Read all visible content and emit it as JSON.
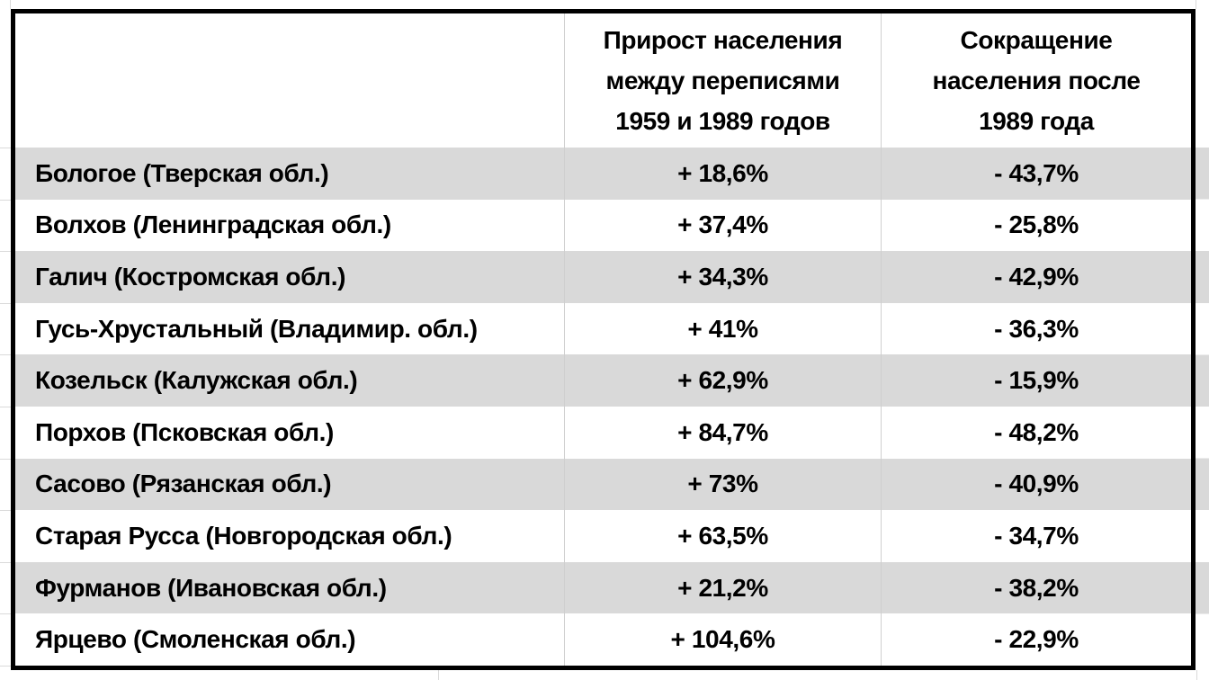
{
  "chart_data": {
    "type": "table",
    "columns": [
      {
        "id": "city",
        "label": ""
      },
      {
        "id": "growth",
        "label": "Прирост населения между переписями 1959 и 1989 годов",
        "label_lines": [
          "Прирост населения",
          "между переписями",
          "1959 и 1989 годов"
        ]
      },
      {
        "id": "decline",
        "label": "Сокращение населения после 1989 года",
        "label_lines": [
          "Сокращение",
          "населения после",
          "1989 года"
        ]
      }
    ],
    "rows": [
      {
        "city": "Бологое (Тверская обл.)",
        "growth": "+ 18,6%",
        "decline": "- 43,7%"
      },
      {
        "city": "Волхов (Ленинградская обл.)",
        "growth": "+ 37,4%",
        "decline": "- 25,8%"
      },
      {
        "city": "Галич (Костромская обл.)",
        "growth": "+ 34,3%",
        "decline": "- 42,9%"
      },
      {
        "city": "Гусь-Хрустальный (Владимир. обл.)",
        "growth": "+ 41%",
        "decline": "- 36,3%"
      },
      {
        "city": "Козельск (Калужская обл.)",
        "growth": "+ 62,9%",
        "decline": "- 15,9%"
      },
      {
        "city": "Порхов (Псковская обл.)",
        "growth": "+ 84,7%",
        "decline": "- 48,2%"
      },
      {
        "city": "Сасово (Рязанская обл.)",
        "growth": "+ 73%",
        "decline": "- 40,9%"
      },
      {
        "city": "Старая Русса (Новгородская обл.)",
        "growth": "+ 63,5%",
        "decline": "- 34,7%"
      },
      {
        "city": "Фурманов (Ивановская обл.)",
        "growth": "+ 21,2%",
        "decline": "- 38,2%"
      },
      {
        "city": "Ярцево (Смоленская обл.)",
        "growth": "+ 104,6%",
        "decline": "- 22,9%"
      }
    ],
    "growth_values_pct": [
      18.6,
      37.4,
      34.3,
      41,
      62.9,
      84.7,
      73,
      63.5,
      21.2,
      104.6
    ],
    "decline_values_pct": [
      -43.7,
      -25.8,
      -42.9,
      -36.3,
      -15.9,
      -48.2,
      -40.9,
      -34.7,
      -38.2,
      -22.9
    ],
    "layout_hints": {
      "striped_rows": "odd rows shaded gray starting with first data row",
      "value_alignment": "center",
      "city_alignment": "left",
      "outer_border": "thick black"
    }
  },
  "colors": {
    "stripe": "#d9d9d9",
    "table_border": "#000000",
    "gridline": "#cfcfcf",
    "text": "#000000",
    "background": "#ffffff"
  }
}
